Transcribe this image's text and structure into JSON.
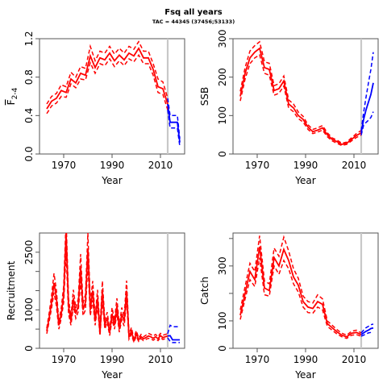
{
  "figure": {
    "title": "Fsq all years",
    "subtitle": "TAC = 44345 (37456;53133)"
  },
  "colors": {
    "historical": "#ff0000",
    "projection": "#0000ff",
    "assessment_year_line": "#c8c8c8",
    "axis": "#555555"
  },
  "chart_data": [
    {
      "type": "line",
      "id": "fbar",
      "xlabel": "Year",
      "ylabel": "F2-4",
      "ylabel_parts": {
        "main": "F",
        "sub": "2-4"
      },
      "xlim": [
        1960,
        2020
      ],
      "ylim": [
        0,
        1.2
      ],
      "xticks": [
        1970,
        1990,
        2010
      ],
      "yticks": [
        0.0,
        0.4,
        0.8,
        1.2
      ],
      "ytick_labels": [
        "0.0",
        "0.4",
        "0.8",
        "1.2"
      ],
      "assessment_year": 2013,
      "historical": {
        "x": [
          1963,
          1965,
          1967,
          1969,
          1971,
          1973,
          1975,
          1977,
          1979,
          1981,
          1983,
          1985,
          1987,
          1989,
          1991,
          1993,
          1995,
          1997,
          1999,
          2001,
          2003,
          2005,
          2007,
          2009,
          2011,
          2013
        ],
        "mid": [
          0.47,
          0.55,
          0.58,
          0.66,
          0.64,
          0.78,
          0.74,
          0.84,
          0.82,
          1.02,
          0.9,
          1.0,
          0.98,
          1.05,
          0.97,
          1.03,
          0.98,
          1.05,
          1.02,
          1.1,
          1.0,
          1.0,
          0.88,
          0.7,
          0.68,
          0.52
        ],
        "lower": [
          0.42,
          0.5,
          0.53,
          0.6,
          0.59,
          0.73,
          0.69,
          0.78,
          0.77,
          0.95,
          0.84,
          0.94,
          0.92,
          0.99,
          0.91,
          0.97,
          0.92,
          0.99,
          0.96,
          1.03,
          0.94,
          0.94,
          0.82,
          0.64,
          0.62,
          0.46
        ],
        "upper": [
          0.52,
          0.6,
          0.63,
          0.72,
          0.7,
          0.85,
          0.8,
          0.91,
          0.89,
          1.12,
          0.97,
          1.07,
          1.05,
          1.12,
          1.04,
          1.1,
          1.05,
          1.12,
          1.09,
          1.17,
          1.07,
          1.07,
          0.94,
          0.78,
          0.75,
          0.58
        ]
      },
      "projection": {
        "x": [
          2013,
          2014,
          2015,
          2016,
          2017,
          2018
        ],
        "mid": [
          0.52,
          0.33,
          0.33,
          0.33,
          0.33,
          0.12
        ],
        "lower": [
          0.46,
          0.27,
          0.27,
          0.27,
          0.27,
          0.08
        ],
        "upper": [
          0.58,
          0.4,
          0.4,
          0.4,
          0.4,
          0.16
        ]
      }
    },
    {
      "type": "line",
      "id": "ssb",
      "xlabel": "Year",
      "ylabel": "SSB",
      "xlim": [
        1960,
        2020
      ],
      "ylim": [
        0,
        300
      ],
      "xticks": [
        1970,
        1990,
        2010
      ],
      "yticks": [
        0,
        100,
        200,
        300
      ],
      "ytick_labels": [
        "0",
        "100",
        "200",
        "300"
      ],
      "assessment_year": 2013,
      "historical": {
        "x": [
          1963,
          1965,
          1967,
          1969,
          1971,
          1973,
          1975,
          1977,
          1979,
          1981,
          1983,
          1985,
          1987,
          1989,
          1991,
          1993,
          1995,
          1997,
          1999,
          2001,
          2003,
          2005,
          2007,
          2009,
          2011,
          2013
        ],
        "mid": [
          150,
          210,
          250,
          265,
          275,
          225,
          220,
          165,
          170,
          190,
          130,
          120,
          100,
          90,
          70,
          58,
          62,
          68,
          50,
          38,
          32,
          25,
          28,
          38,
          48,
          55
        ],
        "lower": [
          138,
          195,
          235,
          250,
          258,
          210,
          205,
          153,
          158,
          177,
          120,
          110,
          92,
          83,
          64,
          53,
          57,
          62,
          45,
          34,
          28,
          22,
          25,
          34,
          43,
          49
        ],
        "upper": [
          163,
          225,
          268,
          282,
          292,
          240,
          236,
          178,
          183,
          203,
          141,
          130,
          109,
          98,
          76,
          64,
          68,
          74,
          55,
          42,
          36,
          28,
          31,
          42,
          53,
          61
        ]
      },
      "projection": {
        "x": [
          2013,
          2014,
          2015,
          2016,
          2017,
          2018
        ],
        "mid": [
          55,
          90,
          115,
          135,
          155,
          185
        ],
        "lower": [
          49,
          75,
          82,
          88,
          95,
          110
        ],
        "upper": [
          61,
          108,
          148,
          185,
          220,
          265
        ]
      }
    },
    {
      "type": "line",
      "id": "recruitment",
      "xlabel": "Year",
      "ylabel": "Recruitment",
      "xlim": [
        1960,
        2020
      ],
      "ylim": [
        0,
        3000
      ],
      "xticks": [
        1970,
        1990,
        2010
      ],
      "yticks": [
        0,
        500,
        1000,
        1500,
        2000,
        2500
      ],
      "ytick_labels": [
        "0",
        "",
        "1000",
        "",
        "",
        "2500"
      ],
      "assessment_year": 2013,
      "historical": {
        "x": [
          1963,
          1964,
          1965,
          1966,
          1967,
          1968,
          1969,
          1970,
          1971,
          1972,
          1973,
          1974,
          1975,
          1976,
          1977,
          1978,
          1979,
          1980,
          1981,
          1982,
          1983,
          1984,
          1985,
          1986,
          1987,
          1988,
          1989,
          1990,
          1991,
          1992,
          1993,
          1994,
          1995,
          1996,
          1997,
          1998,
          1999,
          2000,
          2001,
          2002,
          2003,
          2004,
          2005,
          2006,
          2007,
          2008,
          2009,
          2010,
          2011,
          2012,
          2013
        ],
        "mid": [
          450,
          800,
          1200,
          1700,
          1300,
          600,
          900,
          1400,
          3000,
          1100,
          700,
          1300,
          900,
          1100,
          2100,
          1000,
          1200,
          2600,
          1000,
          1500,
          700,
          1300,
          400,
          1500,
          600,
          800,
          400,
          900,
          600,
          1100,
          500,
          900,
          700,
          1500,
          300,
          450,
          200,
          380,
          220,
          300,
          250,
          280,
          320,
          300,
          260,
          300,
          250,
          330,
          280,
          300,
          320
        ],
        "lower": [
          380,
          700,
          1050,
          1450,
          1100,
          500,
          780,
          1200,
          2500,
          900,
          600,
          1100,
          780,
          950,
          1750,
          850,
          1000,
          2200,
          850,
          1250,
          600,
          1100,
          330,
          1250,
          500,
          680,
          330,
          750,
          500,
          900,
          420,
          750,
          580,
          1250,
          240,
          370,
          160,
          310,
          180,
          250,
          200,
          230,
          260,
          250,
          210,
          250,
          200,
          280,
          230,
          250,
          270
        ],
        "upper": [
          520,
          920,
          1380,
          1950,
          1500,
          700,
          1050,
          1620,
          3350,
          1300,
          820,
          1520,
          1050,
          1280,
          2450,
          1170,
          1400,
          3000,
          1170,
          1750,
          820,
          1520,
          480,
          1750,
          720,
          940,
          480,
          1060,
          720,
          1300,
          590,
          1060,
          830,
          1760,
          370,
          540,
          250,
          460,
          270,
          360,
          300,
          340,
          390,
          360,
          320,
          360,
          300,
          390,
          340,
          360,
          380
        ]
      },
      "projection": {
        "x": [
          2013,
          2014,
          2015,
          2016,
          2017,
          2018
        ],
        "mid": [
          320,
          330,
          220,
          220,
          220,
          220
        ],
        "lower": [
          270,
          180,
          150,
          150,
          150,
          150
        ],
        "upper": [
          380,
          600,
          560,
          560,
          560,
          560
        ]
      }
    },
    {
      "type": "line",
      "id": "catch",
      "xlabel": "Year",
      "ylabel": "Catch",
      "xlim": [
        1960,
        2020
      ],
      "ylim": [
        0,
        420
      ],
      "xticks": [
        1970,
        1990,
        2010
      ],
      "yticks": [
        0,
        100,
        200,
        300,
        400
      ],
      "ytick_labels": [
        "0",
        "100",
        "",
        "300",
        ""
      ],
      "assessment_year": 2013,
      "historical": {
        "x": [
          1963,
          1965,
          1967,
          1969,
          1971,
          1973,
          1975,
          1977,
          1979,
          1981,
          1983,
          1985,
          1987,
          1989,
          1991,
          1993,
          1995,
          1997,
          1999,
          2001,
          2003,
          2005,
          2007,
          2009,
          2011,
          2013
        ],
        "mid": [
          120,
          200,
          280,
          250,
          370,
          220,
          210,
          330,
          300,
          360,
          320,
          260,
          230,
          170,
          150,
          145,
          170,
          160,
          90,
          75,
          60,
          48,
          42,
          55,
          58,
          50
        ],
        "lower": [
          105,
          180,
          250,
          225,
          330,
          195,
          190,
          300,
          270,
          320,
          290,
          235,
          205,
          150,
          130,
          128,
          150,
          140,
          80,
          66,
          52,
          42,
          36,
          48,
          50,
          44
        ],
        "upper": [
          140,
          225,
          310,
          280,
          410,
          245,
          235,
          365,
          335,
          405,
          355,
          290,
          255,
          190,
          170,
          165,
          195,
          180,
          100,
          84,
          68,
          55,
          48,
          62,
          66,
          56
        ]
      },
      "projection": {
        "x": [
          2013,
          2014,
          2015,
          2016,
          2017,
          2018
        ],
        "mid": [
          50,
          56,
          62,
          66,
          72,
          74
        ],
        "lower": [
          44,
          48,
          52,
          56,
          58,
          60
        ],
        "upper": [
          56,
          66,
          75,
          80,
          86,
          88
        ]
      }
    }
  ]
}
